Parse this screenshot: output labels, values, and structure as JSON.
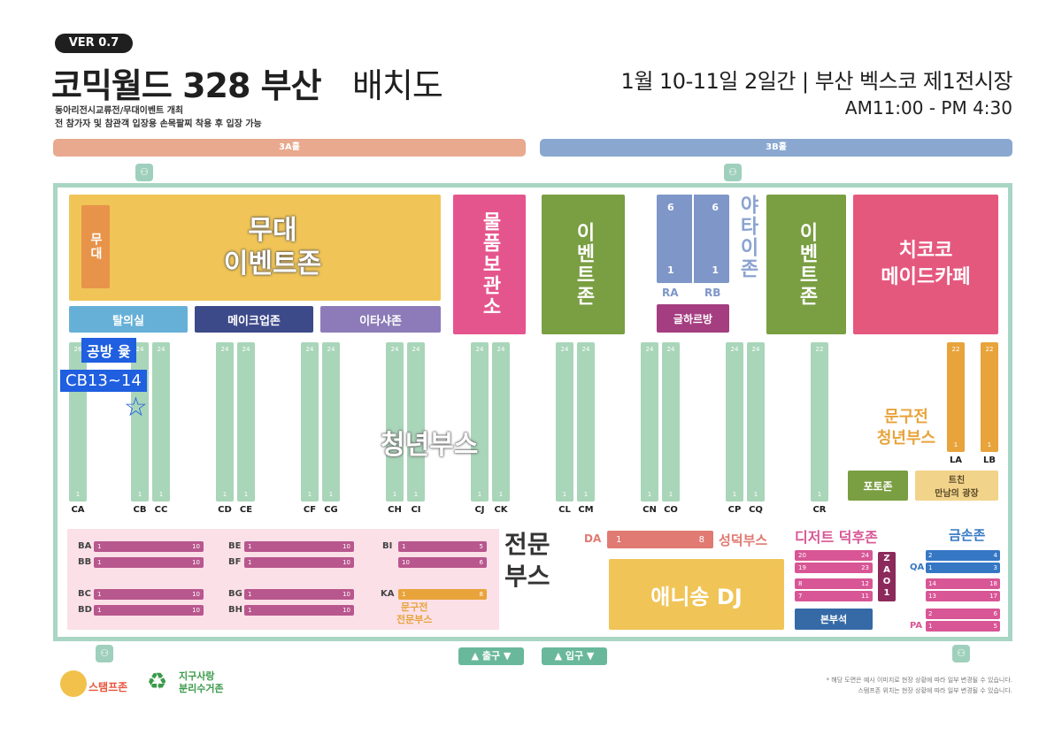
{
  "header": {
    "version": "VER 0.7",
    "title_bold": "코믹월드 328 부산",
    "title_light": "배치도",
    "note1": "동아리전시교류전/무대이벤트 개최",
    "note2": "전 참가자 및 참관객 입장용 손목팔찌 착용 후 입장 가능",
    "date": "1월 10-11일  2일간 | 부산 벡스코 제1전시장",
    "time": "AM11:00 - PM 4:30"
  },
  "halls": {
    "hall_3a": "3A홀",
    "hall_3b": "3B홀"
  },
  "toilet_icon": "toilet-icon",
  "zones": {
    "stage_big": "무대\n이벤트존",
    "stage_small": "무대",
    "changing": "탈의실",
    "makeup": "메이크업존",
    "itasha": "이타샤존",
    "storage": "물품보관소",
    "event_left": "이벤트존",
    "event_right": "이벤트존",
    "yatai": "야타이존",
    "glhr": "글하르방",
    "maid": "치코코\n메이드카페",
    "photo": "포토존",
    "teen_line1": "트친",
    "teen_line2": "만남의 광장",
    "youth": "청년부스",
    "stationery_youth": "문구전\n청년부스",
    "pro_booth": "전문\n부스",
    "stationery_pro": "문구전\n전문부스",
    "seongdeok": "성덕부스",
    "anison": "애니송 DJ",
    "dessert": "디저트 덕후존",
    "gold": "금손존",
    "hq": "본부석",
    "zao": "ZAO1"
  },
  "ra_rb": {
    "ra": "RA",
    "rb": "RB",
    "tl": "6",
    "tr": "6",
    "bl": "1",
    "br": "1"
  },
  "youth_strips": [
    {
      "label": "CA",
      "top": "26",
      "bot": "1"
    },
    {
      "label": "CB",
      "top": "24",
      "bot": "1"
    },
    {
      "label": "CC",
      "top": "24",
      "bot": "1"
    },
    {
      "label": "CD",
      "top": "24",
      "bot": "1"
    },
    {
      "label": "CE",
      "top": "24",
      "bot": "1"
    },
    {
      "label": "CF",
      "top": "24",
      "bot": "1"
    },
    {
      "label": "CG",
      "top": "24",
      "bot": "1"
    },
    {
      "label": "CH",
      "top": "24",
      "bot": "1"
    },
    {
      "label": "CI",
      "top": "24",
      "bot": "1"
    },
    {
      "label": "CJ",
      "top": "24",
      "bot": "1"
    },
    {
      "label": "CK",
      "top": "24",
      "bot": "1"
    },
    {
      "label": "CL",
      "top": "24",
      "bot": "1"
    },
    {
      "label": "CM",
      "top": "24",
      "bot": "1"
    },
    {
      "label": "CN",
      "top": "24",
      "bot": "1"
    },
    {
      "label": "CO",
      "top": "24",
      "bot": "1"
    },
    {
      "label": "CP",
      "top": "24",
      "bot": "1"
    },
    {
      "label": "CQ",
      "top": "24",
      "bot": "1"
    },
    {
      "label": "CR",
      "top": "22",
      "bot": "1"
    }
  ],
  "la_lb": [
    {
      "label": "LA",
      "top": "22",
      "bot": "1"
    },
    {
      "label": "LB",
      "top": "22",
      "bot": "1"
    }
  ],
  "annotation": {
    "line1": "공방 윷",
    "line2": "CB13~14",
    "star": "☆"
  },
  "pro_rows": [
    {
      "label": "BA",
      "start": "1",
      "end": "10"
    },
    {
      "label": "BB",
      "start": "1",
      "end": "10"
    },
    {
      "label": "BC",
      "start": "1",
      "end": "10"
    },
    {
      "label": "BD",
      "start": "1",
      "end": "10"
    },
    {
      "label": "BE",
      "start": "1",
      "end": "10"
    },
    {
      "label": "BF",
      "start": "1",
      "end": "10"
    },
    {
      "label": "BG",
      "start": "1",
      "end": "10"
    },
    {
      "label": "BH",
      "start": "1",
      "end": "10"
    },
    {
      "label": "BI",
      "start": "1",
      "end": "5"
    },
    {
      "label": "",
      "start": "10",
      "end": "6"
    }
  ],
  "ka": {
    "label": "KA",
    "start": "1",
    "end": "8"
  },
  "da": {
    "label": "DA",
    "start": "1",
    "end": "8"
  },
  "dessert_cells": [
    {
      "a": "20",
      "b": "24"
    },
    {
      "a": "19",
      "b": "23"
    },
    {
      "a": "8",
      "b": "12"
    },
    {
      "a": "7",
      "b": "11"
    }
  ],
  "gold": {
    "qa": "QA",
    "pa": "PA",
    "cells": [
      {
        "a": "2",
        "b": "4"
      },
      {
        "a": "1",
        "b": "3"
      },
      {
        "a": "14",
        "b": "18"
      },
      {
        "a": "13",
        "b": "17"
      },
      {
        "a": "2",
        "b": "6"
      },
      {
        "a": "1",
        "b": "5"
      }
    ]
  },
  "exits": {
    "exit": "▲ 출구 ▼",
    "entrance": "▲ 입구 ▼"
  },
  "legend": {
    "stamp": "스탬프존",
    "recycle_line1": "지구사랑",
    "recycle_line2": "분리수거존"
  },
  "footer": {
    "line1": "* 해당 도면은 예시 이미지로 현장 상황에 따라 일부 변경될 수 있습니다.",
    "line2": "스탬프존 위치는 현장 상황에 따라 일부 변경될 수 있습니다."
  },
  "colors": {
    "hall_3a": "#e8a98e",
    "hall_3b": "#8aa8cf",
    "stage": "#f0c457",
    "stage_small": "#e8934a",
    "changing": "#66b0d8",
    "makeup": "#3d4a8a",
    "itasha": "#8c7bb8",
    "storage": "#e5558d",
    "event": "#7a9e42",
    "yatai_box": "#7e96c8",
    "yatai_text": "#8aa3d0",
    "glhr": "#a43e80",
    "maid": "#e5587e",
    "youth_strip": "#a9d5b9",
    "stationery": "#e8a33b",
    "pro_bg": "#fbe0e8",
    "pro_bar": "#b8578d",
    "seongdeok": "#e07a72",
    "anison": "#f0c457",
    "dessert": "#d85695",
    "hq": "#356aa6",
    "zao": "#8b2a5b",
    "gold_blue": "#3677c4",
    "gold_pink": "#d85695",
    "annotation": "#1f5fe0",
    "frame": "#a9d5c4"
  }
}
